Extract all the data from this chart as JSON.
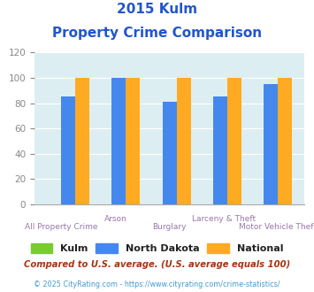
{
  "title_line1": "2015 Kulm",
  "title_line2": "Property Crime Comparison",
  "categories": [
    "All Property Crime",
    "Arson",
    "Burglary",
    "Larceny & Theft",
    "Motor Vehicle Theft"
  ],
  "kulm_values": [
    0,
    0,
    0,
    0,
    0
  ],
  "nd_values": [
    85,
    100,
    81,
    85,
    95
  ],
  "national_values": [
    100,
    100,
    100,
    100,
    100
  ],
  "kulm_color": "#77cc33",
  "nd_color": "#4488ee",
  "national_color": "#ffaa22",
  "bg_color": "#ddeef2",
  "ylim": [
    0,
    120
  ],
  "yticks": [
    0,
    20,
    40,
    60,
    80,
    100,
    120
  ],
  "bar_width": 0.28,
  "legend_labels": [
    "Kulm",
    "North Dakota",
    "National"
  ],
  "footnote1": "Compared to U.S. average. (U.S. average equals 100)",
  "footnote2": "© 2025 CityRating.com - https://www.cityrating.com/crime-statistics/",
  "title_color": "#2255cc",
  "xlabel_color": "#9977aa",
  "tick_color": "#888888",
  "footnote1_color": "#aa3311",
  "footnote2_color": "#4499cc",
  "upper_labels": [
    "Arson",
    "Larceny & Theft"
  ],
  "lower_labels": [
    "All Property Crime",
    "Burglary",
    "Motor Vehicle Theft"
  ]
}
